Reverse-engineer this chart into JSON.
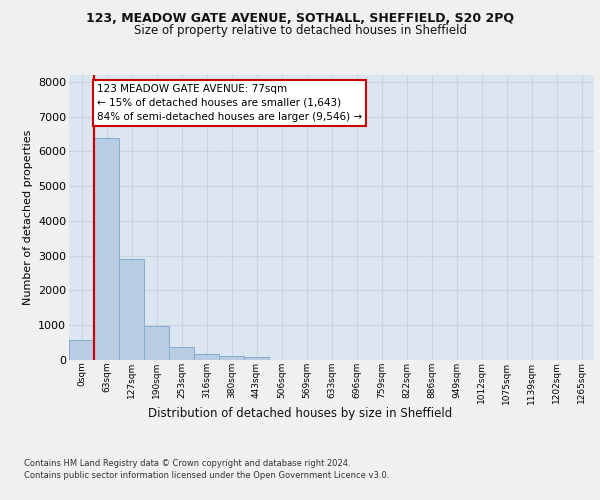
{
  "title_line1": "123, MEADOW GATE AVENUE, SOTHALL, SHEFFIELD, S20 2PQ",
  "title_line2": "Size of property relative to detached houses in Sheffield",
  "xlabel": "Distribution of detached houses by size in Sheffield",
  "ylabel": "Number of detached properties",
  "bar_labels": [
    "0sqm",
    "63sqm",
    "127sqm",
    "190sqm",
    "253sqm",
    "316sqm",
    "380sqm",
    "443sqm",
    "506sqm",
    "569sqm",
    "633sqm",
    "696sqm",
    "759sqm",
    "822sqm",
    "886sqm",
    "949sqm",
    "1012sqm",
    "1075sqm",
    "1139sqm",
    "1202sqm",
    "1265sqm"
  ],
  "bar_values": [
    580,
    6400,
    2920,
    990,
    360,
    170,
    110,
    80,
    0,
    0,
    0,
    0,
    0,
    0,
    0,
    0,
    0,
    0,
    0,
    0,
    0
  ],
  "bar_color": "#b8cce4",
  "bar_edge_color": "#7faacc",
  "vline_color": "#cc0000",
  "annotation_text": "123 MEADOW GATE AVENUE: 77sqm\n← 15% of detached houses are smaller (1,643)\n84% of semi-detached houses are larger (9,546) →",
  "ylim_max": 8200,
  "yticks": [
    0,
    1000,
    2000,
    3000,
    4000,
    5000,
    6000,
    7000,
    8000
  ],
  "grid_color": "#c8d4e4",
  "bg_color": "#dce6f0",
  "fig_bg": "#f0f0f0",
  "footer_line1": "Contains HM Land Registry data © Crown copyright and database right 2024.",
  "footer_line2": "Contains public sector information licensed under the Open Government Licence v3.0."
}
